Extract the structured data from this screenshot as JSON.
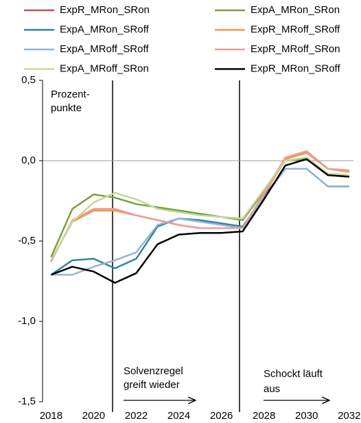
{
  "chart_data": {
    "type": "line",
    "unit_label": [
      "Prozent-",
      "punkte"
    ],
    "annotations": [
      [
        "Solvenzregel",
        "greift wieder"
      ],
      [
        "Schockt läuft",
        "aus"
      ]
    ],
    "x": [
      2018,
      2019,
      2020,
      2021,
      2022,
      2023,
      2024,
      2025,
      2026,
      2027,
      2028,
      2029,
      2030,
      2031,
      2032
    ],
    "xlim": [
      2017.6,
      2032.2
    ],
    "xticks": [
      2018,
      2020,
      2022,
      2024,
      2026,
      2028,
      2030,
      2032
    ],
    "ylim": [
      -1.5,
      0.5
    ],
    "yticks": [
      {
        "value": 0.5,
        "label": "0,5"
      },
      {
        "value": 0,
        "label": "0,0"
      },
      {
        "value": -0.5,
        "label": "-0,5"
      },
      {
        "value": -1,
        "label": "-1,0"
      },
      {
        "value": -1.5,
        "label": "-1,5"
      }
    ],
    "zero_line": true,
    "series": [
      {
        "name": "ExpR_MRon_SRon",
        "color": "#c0504d",
        "values": [
          -0.62,
          -0.38,
          -0.31,
          -0.31,
          -0.34,
          -0.37,
          -0.4,
          -0.42,
          -0.42,
          -0.42,
          -0.21,
          0.01,
          0.05,
          -0.05,
          -0.07
        ]
      },
      {
        "name": "ExpA_MRon_SRon",
        "color": "#77a03c",
        "values": [
          -0.6,
          -0.3,
          -0.21,
          -0.23,
          -0.27,
          -0.29,
          -0.31,
          -0.33,
          -0.35,
          -0.37,
          -0.19,
          0.0,
          0.01,
          -0.09,
          -0.1
        ]
      },
      {
        "name": "ExpA_MRon_SRoff",
        "color": "#31849b",
        "values": [
          -0.71,
          -0.62,
          -0.61,
          -0.67,
          -0.61,
          -0.41,
          -0.36,
          -0.37,
          -0.39,
          -0.41,
          -0.22,
          -0.05,
          -0.05,
          -0.16,
          -0.16
        ]
      },
      {
        "name": "ExpR_MRoff_SRoff",
        "color": "#f79646",
        "values": [
          -0.62,
          -0.38,
          -0.31,
          -0.31,
          -0.34,
          -0.37,
          -0.4,
          -0.42,
          -0.42,
          -0.42,
          -0.21,
          0.01,
          0.05,
          -0.05,
          -0.07
        ]
      },
      {
        "name": "ExpA_MRoff_SRoff",
        "color": "#95b3d7",
        "values": [
          -0.71,
          -0.71,
          -0.66,
          -0.62,
          -0.57,
          -0.4,
          -0.36,
          -0.38,
          -0.4,
          -0.42,
          -0.23,
          -0.05,
          -0.05,
          -0.16,
          -0.16
        ]
      },
      {
        "name": "ExpR_MRoff_SRon",
        "color": "#e6a0a0",
        "values": [
          -0.63,
          -0.37,
          -0.3,
          -0.3,
          -0.34,
          -0.37,
          -0.4,
          -0.42,
          -0.42,
          -0.42,
          -0.2,
          0.02,
          0.06,
          -0.05,
          -0.06
        ]
      },
      {
        "name": "ExpA_MRoff_SRon",
        "color": "#c4d79b",
        "values": [
          -0.62,
          -0.38,
          -0.26,
          -0.2,
          -0.24,
          -0.3,
          -0.32,
          -0.34,
          -0.35,
          -0.36,
          -0.18,
          0.0,
          0.02,
          -0.08,
          -0.09
        ]
      },
      {
        "name": "ExpR_MRon_SRoff",
        "color": "#000000",
        "values": [
          -0.71,
          -0.66,
          -0.69,
          -0.76,
          -0.7,
          -0.52,
          -0.46,
          -0.45,
          -0.45,
          -0.44,
          -0.24,
          -0.03,
          0.01,
          -0.09,
          -0.1
        ]
      }
    ]
  }
}
